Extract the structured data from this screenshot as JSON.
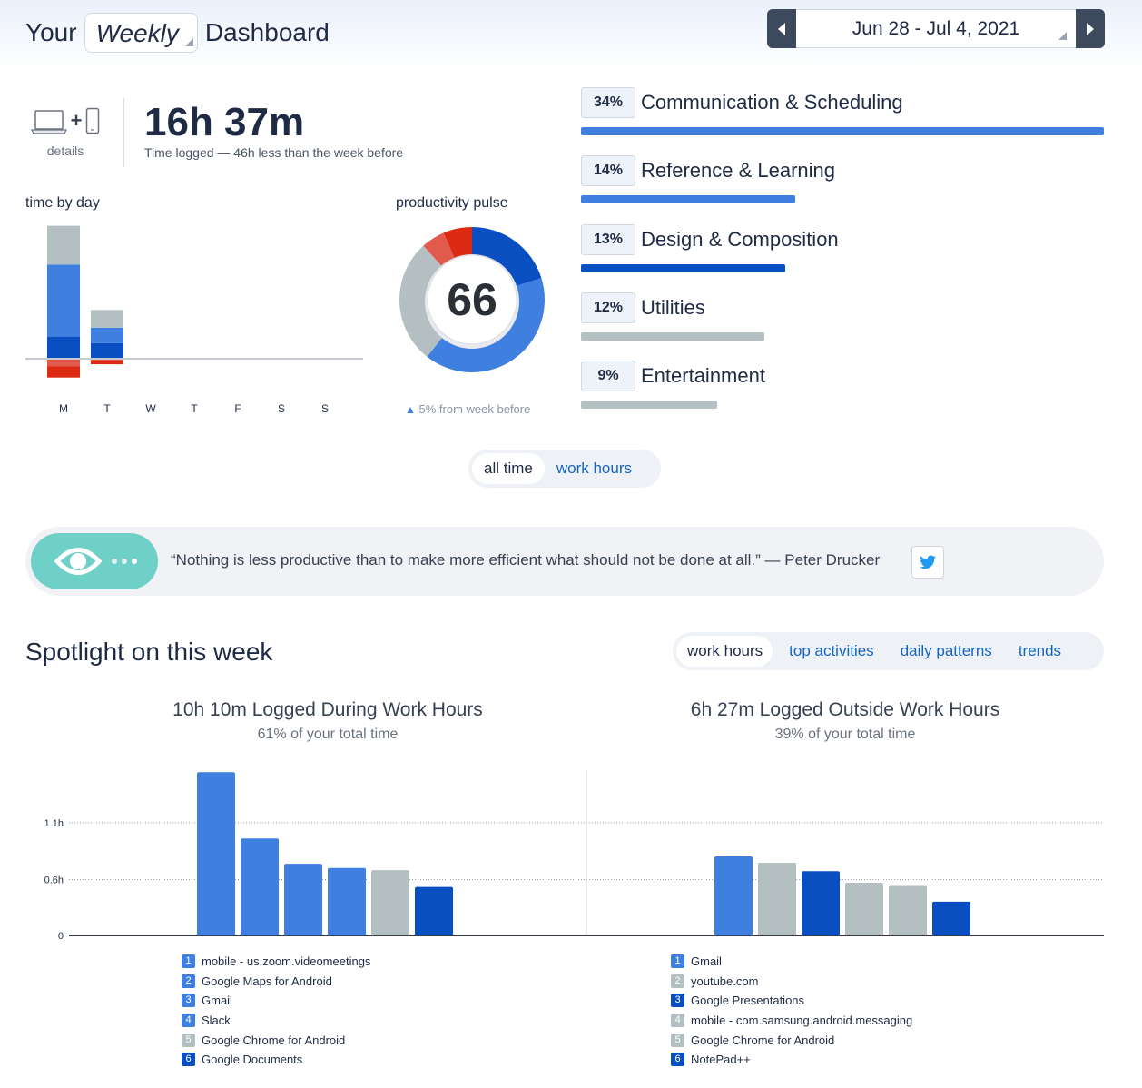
{
  "header": {
    "title_prefix": "Your",
    "period": "Weekly",
    "title_suffix": "Dashboard",
    "date_range": "Jun 28 - Jul 4, 2021"
  },
  "summary": {
    "devices_label": "details",
    "total_time": "16h 37m",
    "total_sub": "Time logged — 46h less than the week before"
  },
  "time_by_day": {
    "label": "time by day",
    "days": [
      "M",
      "T",
      "W",
      "T",
      "F",
      "S",
      "S"
    ]
  },
  "pulse": {
    "label": "productivity pulse",
    "score": "66",
    "footer": "5% from week before"
  },
  "categories": [
    {
      "percent": "34%",
      "name": "Communication & Scheduling",
      "fraction": 1.0,
      "color": "#3f7fe0"
    },
    {
      "percent": "14%",
      "name": "Reference & Learning",
      "fraction": 0.41,
      "color": "#3f7fe0"
    },
    {
      "percent": "13%",
      "name": "Design & Composition",
      "fraction": 0.39,
      "color": "#0a4fc2"
    },
    {
      "percent": "12%",
      "name": "Utilities",
      "fraction": 0.35,
      "color": "#b3bfc0"
    },
    {
      "percent": "9%",
      "name": "Entertainment",
      "fraction": 0.26,
      "color": "#b3bfc0"
    }
  ],
  "toggle": {
    "active": "all time",
    "inactive": "work hours"
  },
  "quote": {
    "text": "“Nothing is less productive than to make more efficient what should not be done at all.” — Peter Drucker"
  },
  "spotlight": {
    "title": "Spotlight on this week",
    "tabs": [
      "work hours",
      "top activities",
      "daily patterns",
      "trends"
    ],
    "left": {
      "title": "10h 10m Logged During Work Hours",
      "subtitle": "61% of your total time",
      "items": [
        {
          "n": "1",
          "name": "mobile - us.zoom.videomeetings",
          "value": 1.55,
          "color": "#3f7fe0"
        },
        {
          "n": "2",
          "name": "Google Maps for Android",
          "value": 0.92,
          "color": "#3f7fe0"
        },
        {
          "n": "3",
          "name": "Gmail",
          "value": 0.68,
          "color": "#3f7fe0"
        },
        {
          "n": "4",
          "name": "Slack",
          "value": 0.64,
          "color": "#3f7fe0"
        },
        {
          "n": "5",
          "name": "Google Chrome for Android",
          "value": 0.62,
          "color": "#b3bfc0"
        },
        {
          "n": "6",
          "name": "Google Documents",
          "value": 0.46,
          "color": "#0a4fc2"
        }
      ]
    },
    "right": {
      "title": "6h 27m Logged Outside Work Hours",
      "subtitle": "39% of your total time",
      "items": [
        {
          "n": "1",
          "name": "Gmail",
          "value": 0.75,
          "color": "#3f7fe0"
        },
        {
          "n": "2",
          "name": "youtube.com",
          "value": 0.69,
          "color": "#b3bfc0"
        },
        {
          "n": "3",
          "name": "Google Presentations",
          "value": 0.61,
          "color": "#0a4fc2"
        },
        {
          "n": "4",
          "name": "mobile - com.samsung.android.messaging",
          "value": 0.5,
          "color": "#b3bfc0"
        },
        {
          "n": "5",
          "name": "Google Chrome for Android",
          "value": 0.47,
          "color": "#b3bfc0"
        },
        {
          "n": "6",
          "name": "NotePad++",
          "value": 0.32,
          "color": "#0a4fc2"
        }
      ]
    },
    "y_ticks": [
      "0",
      "0.6h",
      "1.1h"
    ]
  },
  "chart_data": [
    {
      "type": "bar",
      "title": "time by day",
      "categories": [
        "M",
        "T",
        "W",
        "T",
        "F",
        "S",
        "S"
      ],
      "series": [
        {
          "values": [
            0.2,
            0.14,
            0,
            0,
            0,
            0,
            0
          ],
          "color": "#0a4fc2"
        },
        {
          "values": [
            0.65,
            0.14,
            0,
            0,
            0,
            0,
            0
          ],
          "color": "#3f7fe0"
        },
        {
          "values": [
            0.35,
            0.16,
            0,
            0,
            0,
            0,
            0
          ],
          "color": "#b3bfc0"
        },
        {
          "values": [
            -0.07,
            -0.02,
            0,
            0,
            0,
            0,
            0
          ],
          "color": "#e05a4e"
        },
        {
          "values": [
            -0.1,
            -0.03,
            0,
            0,
            0,
            0,
            0
          ],
          "color": "#dd2a12"
        }
      ]
    },
    {
      "type": "pie",
      "title": "productivity pulse",
      "values": [
        19,
        38,
        26,
        5,
        6
      ],
      "colors": [
        "#0a4fc2",
        "#3f7fe0",
        "#b3bfc0",
        "#e05a4e",
        "#dd2a12"
      ]
    },
    {
      "type": "bar",
      "title": "10h 10m Logged During Work Hours",
      "categories": [
        "1",
        "2",
        "3",
        "4",
        "5",
        "6"
      ],
      "values": [
        1.55,
        0.92,
        0.68,
        0.64,
        0.62,
        0.46
      ],
      "yticks": [
        "0",
        "0.6h",
        "1.1h"
      ]
    },
    {
      "type": "bar",
      "title": "6h 27m Logged Outside Work Hours",
      "categories": [
        "1",
        "2",
        "3",
        "4",
        "5",
        "6"
      ],
      "values": [
        0.75,
        0.69,
        0.61,
        0.5,
        0.47,
        0.32
      ],
      "yticks": [
        "0",
        "0.6h",
        "1.1h"
      ]
    }
  ]
}
